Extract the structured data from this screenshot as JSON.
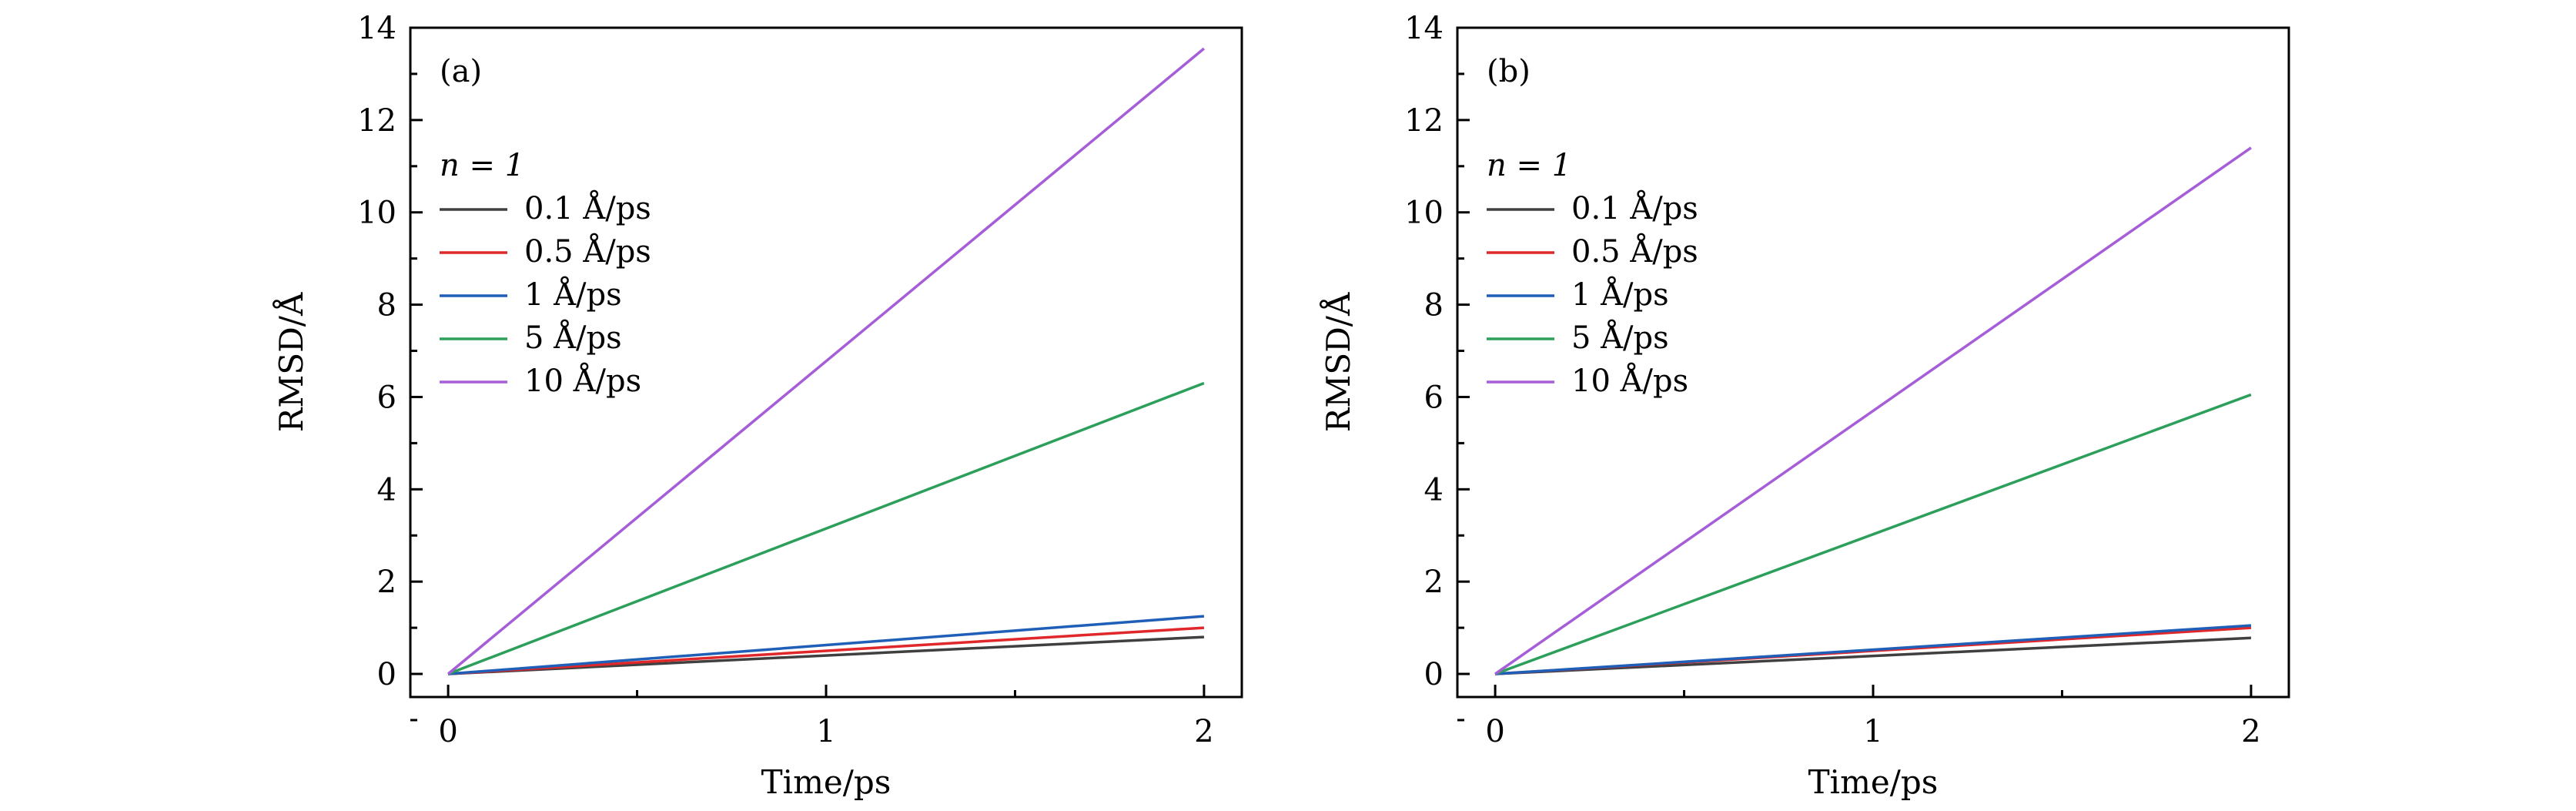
{
  "chart_data": [
    {
      "type": "line",
      "panel_label": "(a)",
      "xlabel": "Time/ps",
      "ylabel": "RMSD/Å",
      "xlim": [
        -0.1,
        2.1
      ],
      "ylim": [
        -0.5,
        14
      ],
      "xticks": [
        0,
        1,
        2
      ],
      "yticks": [
        0,
        2,
        4,
        6,
        8,
        10,
        12,
        14
      ],
      "legend_title": "n = 1",
      "legend_position": "upper-left",
      "series": [
        {
          "name": "0.1 Å/ps",
          "color": "#404040",
          "x": [
            0,
            2
          ],
          "y": [
            0,
            0.8
          ]
        },
        {
          "name": "0.5 Å/ps",
          "color": "#e0272a",
          "x": [
            0,
            2
          ],
          "y": [
            0,
            1.0
          ]
        },
        {
          "name": "1 Å/ps",
          "color": "#1f5fb8",
          "x": [
            0,
            2
          ],
          "y": [
            0,
            1.25
          ]
        },
        {
          "name": "5 Å/ps",
          "color": "#2ca05a",
          "x": [
            0,
            2
          ],
          "y": [
            0,
            6.3
          ]
        },
        {
          "name": "10 Å/ps",
          "color": "#a65ed8",
          "x": [
            0,
            2
          ],
          "y": [
            0,
            13.55
          ]
        }
      ]
    },
    {
      "type": "line",
      "panel_label": "(b)",
      "xlabel": "Time/ps",
      "ylabel": "RMSD/Å",
      "xlim": [
        -0.1,
        2.1
      ],
      "ylim": [
        -0.5,
        14
      ],
      "xticks": [
        0,
        1,
        2
      ],
      "yticks": [
        0,
        2,
        4,
        6,
        8,
        10,
        12,
        14
      ],
      "legend_title": "n = 1",
      "legend_position": "upper-left",
      "series": [
        {
          "name": "0.1 Å/ps",
          "color": "#404040",
          "x": [
            0,
            2
          ],
          "y": [
            0,
            0.78
          ]
        },
        {
          "name": "0.5 Å/ps",
          "color": "#e0272a",
          "x": [
            0,
            2
          ],
          "y": [
            0,
            1.0
          ]
        },
        {
          "name": "1 Å/ps",
          "color": "#1f5fb8",
          "x": [
            0,
            2
          ],
          "y": [
            0,
            1.05
          ]
        },
        {
          "name": "5 Å/ps",
          "color": "#2ca05a",
          "x": [
            0,
            2
          ],
          "y": [
            0,
            6.05
          ]
        },
        {
          "name": "10 Å/ps",
          "color": "#a65ed8",
          "x": [
            0,
            2
          ],
          "y": [
            0,
            11.4
          ]
        }
      ]
    }
  ]
}
